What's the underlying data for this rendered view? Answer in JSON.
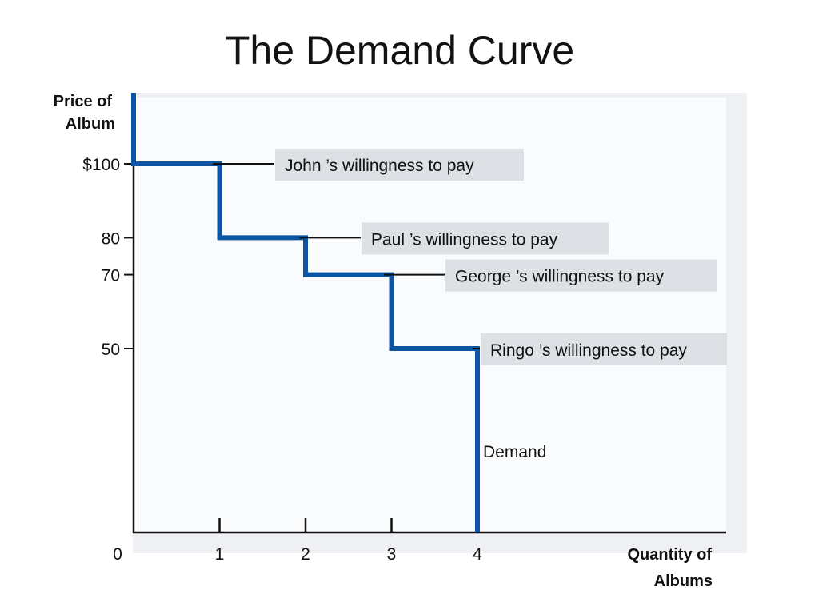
{
  "slide": {
    "title": "The Demand Curve"
  },
  "chart_data": {
    "type": "line",
    "step": true,
    "ylabel": [
      "Price of",
      "Album"
    ],
    "xlabel": [
      "Quantity of",
      "Albums"
    ],
    "origin_label": "0",
    "x_ticks": [
      "1",
      "2",
      "3",
      "4"
    ],
    "y_ticks": [
      {
        "value": 100,
        "label": "$100"
      },
      {
        "value": 80,
        "label": "80"
      },
      {
        "value": 70,
        "label": "70"
      },
      {
        "value": 50,
        "label": "50"
      }
    ],
    "series": [
      {
        "name": "Demand",
        "points": [
          [
            0,
            100
          ],
          [
            1,
            100
          ],
          [
            1,
            80
          ],
          [
            2,
            80
          ],
          [
            2,
            70
          ],
          [
            3,
            70
          ],
          [
            3,
            50
          ],
          [
            4,
            50
          ],
          [
            4,
            0
          ]
        ]
      }
    ],
    "annotations": [
      {
        "text": "John ’s willingness to pay",
        "price": 100
      },
      {
        "text": "Paul ’s willingness to pay",
        "price": 80
      },
      {
        "text": "George  ’s willingness to pay",
        "price": 70
      },
      {
        "text": "Ringo  ’s willingness to pay",
        "price": 50
      }
    ],
    "colors": {
      "curve": "#0b55a3",
      "axis": "#111111",
      "label_box": "#dde0e4",
      "panel": "#eef0f3"
    }
  }
}
